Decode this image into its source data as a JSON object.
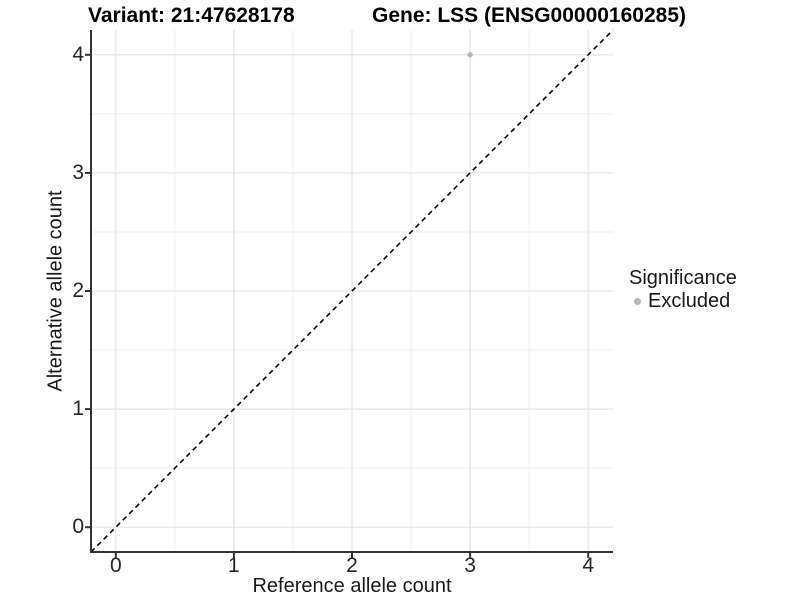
{
  "title": {
    "variant": "Variant: 21:47628178",
    "gene": "Gene: LSS (ENSG00000160285)"
  },
  "axes": {
    "x": {
      "label": "Reference allele count",
      "ticks": [
        "0",
        "1",
        "2",
        "3",
        "4"
      ]
    },
    "y": {
      "label": "Alternative allele count",
      "ticks": [
        "0",
        "1",
        "2",
        "3",
        "4"
      ]
    }
  },
  "legend": {
    "title": "Significance",
    "items": [
      {
        "label": "Excluded",
        "color": "#b4b4b4"
      }
    ]
  },
  "colors": {
    "background": "#ffffff",
    "grid_major": "#e3e3e3",
    "grid_minor": "#efefef",
    "axis_line": "#333333",
    "tick_text": "#262626",
    "title_text": "#000000",
    "point": "#b4b4b4",
    "identity_line": "#000000"
  },
  "chart_data": {
    "type": "scatter",
    "title": "Variant: 21:47628178    Gene: LSS (ENSG00000160285)",
    "xlabel": "Reference allele count",
    "ylabel": "Alternative allele count",
    "xlim": [
      -0.21,
      4.21
    ],
    "ylim": [
      -0.21,
      4.21
    ],
    "x_ticks": [
      0,
      1,
      2,
      3,
      4
    ],
    "y_ticks": [
      0,
      1,
      2,
      3,
      4
    ],
    "minor_ticks": [
      0.5,
      1.5,
      2.5,
      3.5
    ],
    "grid": "on",
    "legend_position": "right",
    "series": [
      {
        "name": "Excluded",
        "color": "#b4b4b4",
        "points": [
          [
            3,
            4
          ]
        ]
      }
    ],
    "annotations": [
      {
        "type": "abline",
        "slope": 1,
        "intercept": 0,
        "style": "dashed",
        "color": "#000000"
      }
    ]
  }
}
